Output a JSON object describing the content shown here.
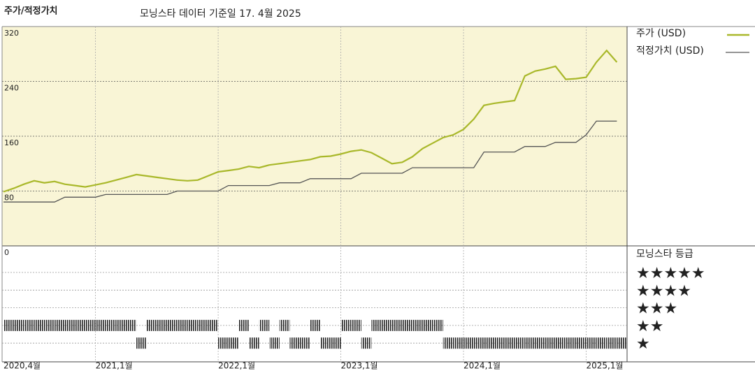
{
  "chart_data": {
    "type": "line",
    "title": "주가/적정가치",
    "subtitle": "모닝스타 데이터 기준일 17. 4월 2025",
    "x": [
      "2020-04",
      "2020-05",
      "2020-06",
      "2020-07",
      "2020-08",
      "2020-09",
      "2020-10",
      "2020-11",
      "2020-12",
      "2021-01",
      "2021-02",
      "2021-03",
      "2021-04",
      "2021-05",
      "2021-06",
      "2021-07",
      "2021-08",
      "2021-09",
      "2021-10",
      "2021-11",
      "2021-12",
      "2022-01",
      "2022-02",
      "2022-03",
      "2022-04",
      "2022-05",
      "2022-06",
      "2022-07",
      "2022-08",
      "2022-09",
      "2022-10",
      "2022-11",
      "2022-12",
      "2023-01",
      "2023-02",
      "2023-03",
      "2023-04",
      "2023-05",
      "2023-06",
      "2023-07",
      "2023-08",
      "2023-09",
      "2023-10",
      "2023-11",
      "2023-12",
      "2024-01",
      "2024-02",
      "2024-03",
      "2024-04",
      "2024-05",
      "2024-06",
      "2024-07",
      "2024-08",
      "2024-09",
      "2024-10",
      "2024-11",
      "2024-12",
      "2025-01",
      "2025-02",
      "2025-03",
      "2025-04"
    ],
    "xlim": [
      "2020-04",
      "2025-05"
    ],
    "xticks": [
      {
        "value": "2020-04",
        "label": "2020,4월"
      },
      {
        "value": "2021-01",
        "label": "2021,1월"
      },
      {
        "value": "2022-01",
        "label": "2022,1월"
      },
      {
        "value": "2023-01",
        "label": "2023,1월"
      },
      {
        "value": "2024-01",
        "label": "2024,1월"
      },
      {
        "value": "2025-01",
        "label": "2025,1월"
      }
    ],
    "ylim": [
      0,
      320
    ],
    "yticks": [
      0,
      80,
      160,
      240,
      320
    ],
    "grid": true,
    "background": "#f9f5d6",
    "series": [
      {
        "name": "주가 (USD)",
        "color": "#a9b82a",
        "values": [
          79,
          84,
          90,
          95,
          92,
          94,
          90,
          88,
          86,
          89,
          92,
          96,
          100,
          104,
          102,
          100,
          98,
          96,
          95,
          96,
          102,
          108,
          110,
          112,
          116,
          114,
          118,
          120,
          122,
          124,
          126,
          130,
          131,
          134,
          138,
          140,
          136,
          128,
          120,
          122,
          130,
          142,
          150,
          158,
          162,
          170,
          185,
          205,
          208,
          210,
          212,
          248,
          255,
          258,
          262,
          243,
          244,
          246,
          268,
          285,
          268
        ]
      },
      {
        "name": "적정가치 (USD)",
        "color": "#555555",
        "values": [
          64,
          64,
          64,
          64,
          64,
          64,
          71,
          71,
          71,
          71,
          75,
          75,
          75,
          75,
          75,
          75,
          75,
          80,
          80,
          80,
          80,
          80,
          88,
          88,
          88,
          88,
          88,
          92,
          92,
          92,
          98,
          98,
          98,
          98,
          98,
          106,
          106,
          106,
          106,
          106,
          114,
          114,
          114,
          114,
          114,
          114,
          114,
          137,
          137,
          137,
          137,
          145,
          145,
          145,
          151,
          151,
          151,
          162,
          182,
          182,
          182
        ]
      }
    ],
    "rating": {
      "title": "모닝스타 등급",
      "rows": [
        {
          "value": 5,
          "label": "★★★★★"
        },
        {
          "value": 4,
          "label": "★★★★"
        },
        {
          "value": 3,
          "label": "★★★"
        },
        {
          "value": 2,
          "label": "★★"
        },
        {
          "value": 1,
          "label": "★"
        }
      ],
      "values": [
        2,
        2,
        2,
        2,
        2,
        2,
        2,
        2,
        2,
        2,
        2,
        2,
        2,
        1,
        2,
        2,
        2,
        2,
        2,
        2,
        2,
        1,
        1,
        2,
        1,
        2,
        1,
        2,
        1,
        1,
        2,
        1,
        1,
        2,
        2,
        1,
        2,
        2,
        2,
        2,
        2,
        2,
        2,
        1,
        1,
        1,
        1,
        1,
        1,
        1,
        1,
        1,
        1,
        1,
        1,
        1,
        1,
        1,
        1,
        1,
        1
      ]
    }
  }
}
